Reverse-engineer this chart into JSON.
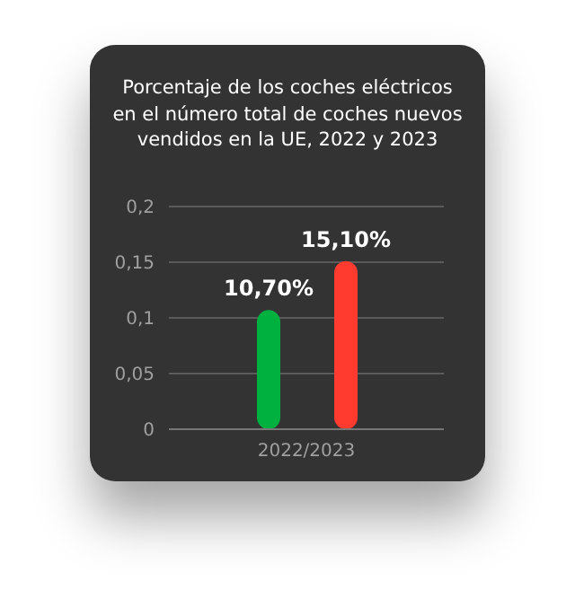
{
  "chart_data": {
    "type": "bar",
    "title": "Porcentaje de los coches eléctricos en el número total de coches nuevos vendidos en la UE, 2022 y 2023",
    "categories": [
      "2022/2023"
    ],
    "series": [
      {
        "color": "#00b140",
        "values": [
          0.107
        ],
        "value_labels": [
          "10,70%"
        ]
      },
      {
        "color": "#ff3b30",
        "values": [
          0.151
        ],
        "value_labels": [
          "15,10%"
        ]
      }
    ],
    "ylim": [
      0,
      0.2
    ],
    "yticks": [
      0,
      {
        "value": 0.05,
        "label": "0,05"
      },
      {
        "value": 0.1,
        "label": "0,1"
      },
      {
        "value": 0.15,
        "label": "0,15"
      },
      {
        "value": 0.2,
        "label": "0,2"
      }
    ],
    "grid": "y",
    "legend": false
  }
}
